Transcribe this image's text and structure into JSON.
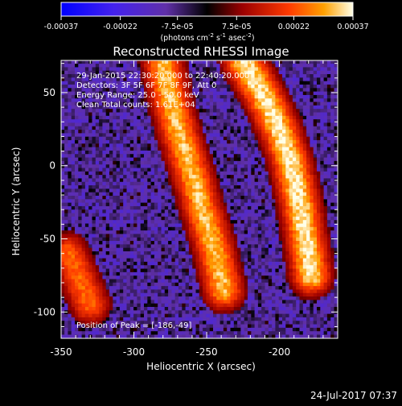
{
  "chart_data": {
    "type": "heatmap",
    "title": "Reconstructed RHESSI Image",
    "xlabel": "Heliocentric X (arcsec)",
    "ylabel": "Heliocentric Y (arcsec)",
    "xlim": [
      -350,
      -160
    ],
    "ylim": [
      -118,
      72
    ],
    "x_ticks": [
      -350,
      -300,
      -250,
      -200
    ],
    "x_tick_labels": [
      "-350",
      "-300",
      "-250",
      "-200"
    ],
    "y_ticks": [
      50,
      0,
      -50,
      -100
    ],
    "y_tick_labels": [
      "50",
      "0",
      "-50",
      "-100"
    ],
    "colorbar": {
      "min": -0.00037,
      "max": 0.00037,
      "ticks": [
        -0.00037,
        -0.00022,
        -7.5e-05,
        7.5e-05,
        0.00022,
        0.00037
      ],
      "tick_labels": [
        "-0.00037",
        "-0.00022",
        "-7.5e-05",
        "7.5e-05",
        "0.00022",
        "0.00037"
      ],
      "units_text": "(photons cm",
      "units_exp1": "-2",
      "units_mid": " s",
      "units_exp2": "-1",
      "units_end": " asec",
      "units_exp3": "-2",
      "units_close": ")"
    },
    "info_lines": [
      "29-Jan-2015 22:30:20.000 to 22:40:20.000",
      "Detectors: 3F 5F 6F 7F 8F 9F, Att 0",
      "Energy Range: 25.0 - 50.0 keV",
      "Clean     Total counts: 1.61E+04"
    ],
    "peak_label": "Position of Peak = [-186,-49]",
    "peak_position": [
      -186,
      -49
    ],
    "source_ridges": [
      {
        "x": [
          -280,
          -275,
          -268,
          -260,
          -253,
          -245,
          -238
        ],
        "y": [
          70,
          45,
          20,
          -5,
          -30,
          -55,
          -85
        ],
        "peak": 0.00033
      },
      {
        "x": [
          -225,
          -212,
          -200,
          -193,
          -187,
          -182,
          -178
        ],
        "y": [
          72,
          50,
          25,
          5,
          -20,
          -49,
          -75
        ],
        "peak": 0.00037
      },
      {
        "x": [
          -345,
          -337,
          -330
        ],
        "y": [
          -60,
          -78,
          -95
        ],
        "peak": 0.00025
      }
    ]
  },
  "timestamp": "24-Jul-2017 07:37"
}
